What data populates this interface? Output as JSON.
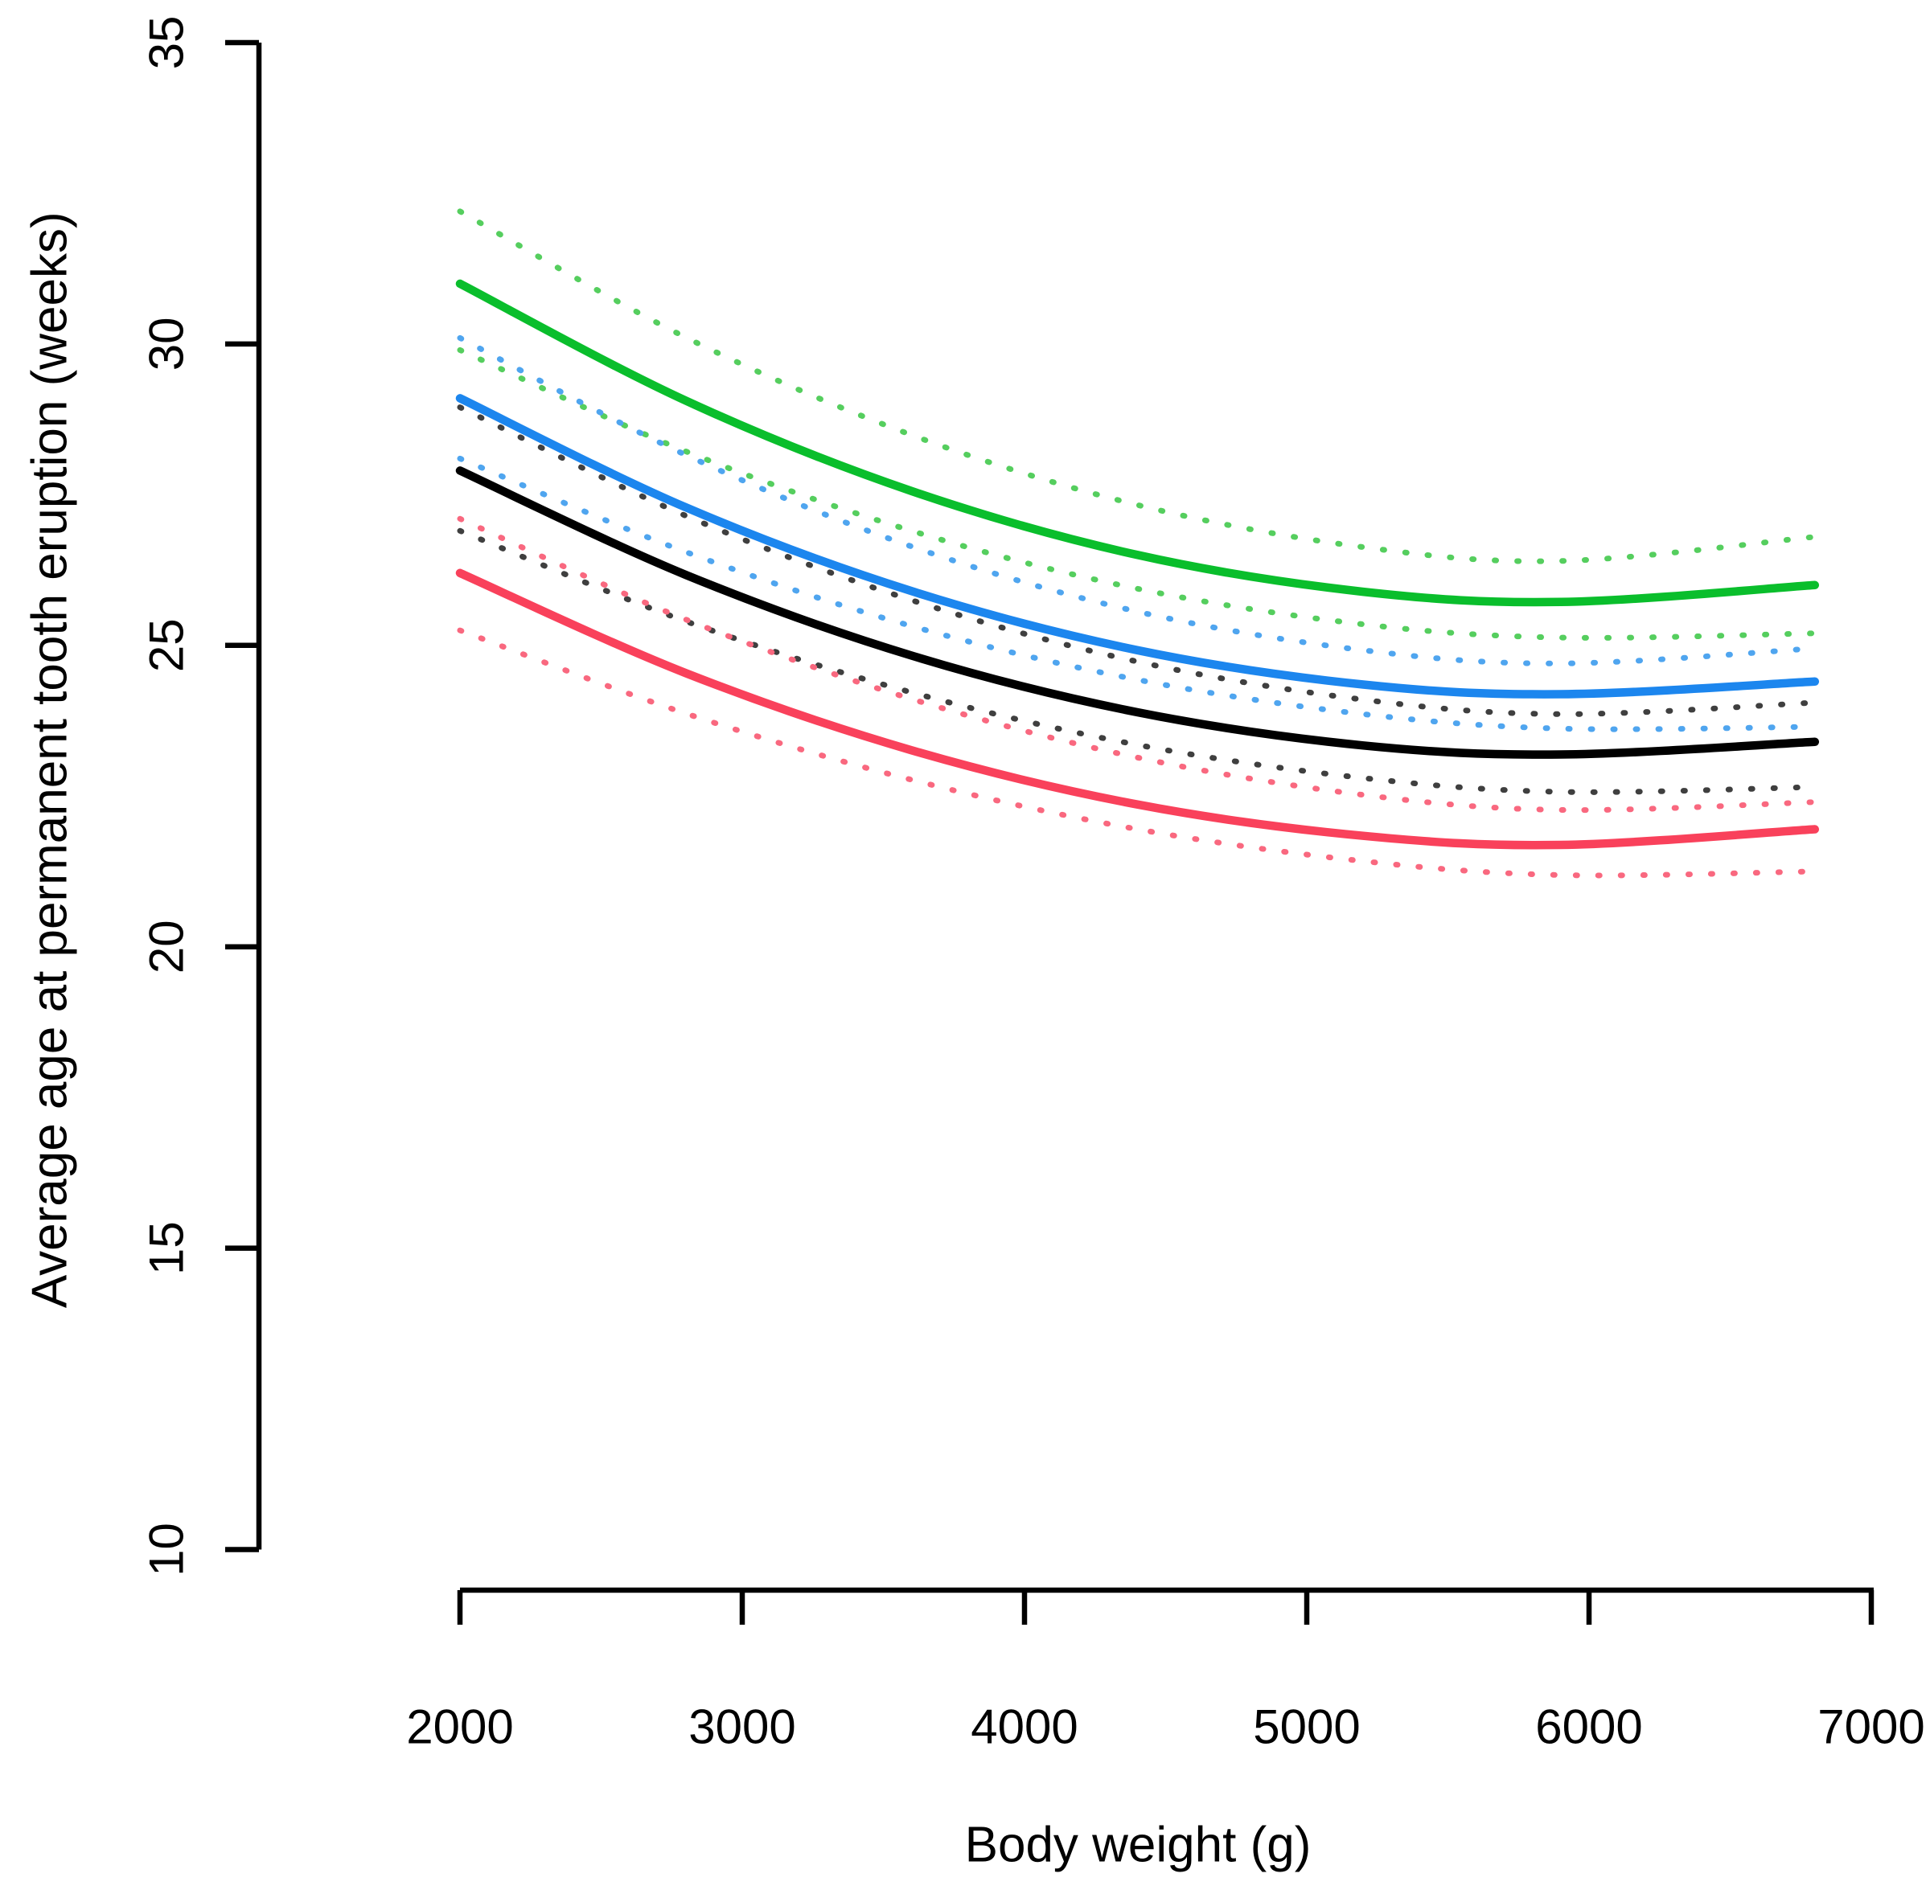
{
  "chart_data": {
    "type": "line",
    "title": "",
    "xlabel": "Body weight (g)",
    "ylabel": "Average age at permanent tooth eruption (weeks)",
    "x_ticks": [
      2000,
      3000,
      4000,
      5000,
      6000,
      7000
    ],
    "y_ticks": [
      10,
      15,
      20,
      25,
      30,
      35
    ],
    "xlim": [
      2000,
      7000
    ],
    "ylim": [
      10,
      35
    ],
    "grid": "off",
    "legend": "none",
    "curve_x": [
      2000,
      2800,
      3600,
      4400,
      5200,
      5900,
      6800
    ],
    "groups": [
      {
        "name": "green",
        "fit_color": "#0ABE2C",
        "ci_color": "#55CE5E",
        "fit": [
          31.0,
          29.06,
          27.56,
          26.5,
          25.89,
          25.72,
          26.0
        ],
        "ci_upper": [
          32.2,
          30.11,
          28.49,
          27.33,
          26.63,
          26.4,
          26.8
        ],
        "ci_lower": [
          29.9,
          28.22,
          26.9,
          25.94,
          25.35,
          25.13,
          25.2
        ]
      },
      {
        "name": "blue",
        "fit_color": "#1C86EE",
        "ci_color": "#4FA5EF",
        "fit": [
          29.1,
          27.29,
          25.9,
          24.92,
          24.35,
          24.19,
          24.4
        ],
        "ci_upper": [
          30.1,
          28.16,
          26.64,
          25.56,
          24.92,
          24.7,
          24.95
        ],
        "ci_lower": [
          28.1,
          26.55,
          25.32,
          24.43,
          23.86,
          23.62,
          23.65
        ]
      },
      {
        "name": "black",
        "fit_color": "#000000",
        "ci_color": "#3F3F3F",
        "fit": [
          27.9,
          26.17,
          24.83,
          23.89,
          23.34,
          23.19,
          23.4
        ],
        "ci_upper": [
          28.95,
          27.15,
          25.75,
          24.73,
          24.1,
          23.86,
          24.05
        ],
        "ci_lower": [
          26.9,
          25.4,
          24.22,
          23.35,
          22.8,
          22.57,
          22.65
        ]
      },
      {
        "name": "red",
        "fit_color": "#F9415B",
        "ci_color": "#F9687F",
        "fit": [
          26.2,
          24.54,
          23.26,
          22.36,
          21.84,
          21.69,
          21.95
        ],
        "ci_upper": [
          27.1,
          25.43,
          24.11,
          23.14,
          22.52,
          22.27,
          22.4
        ],
        "ci_lower": [
          25.25,
          23.87,
          22.77,
          21.95,
          21.42,
          21.19,
          21.25
        ]
      }
    ],
    "line_styles": {
      "fit": "solid",
      "ci": "dotted"
    }
  }
}
